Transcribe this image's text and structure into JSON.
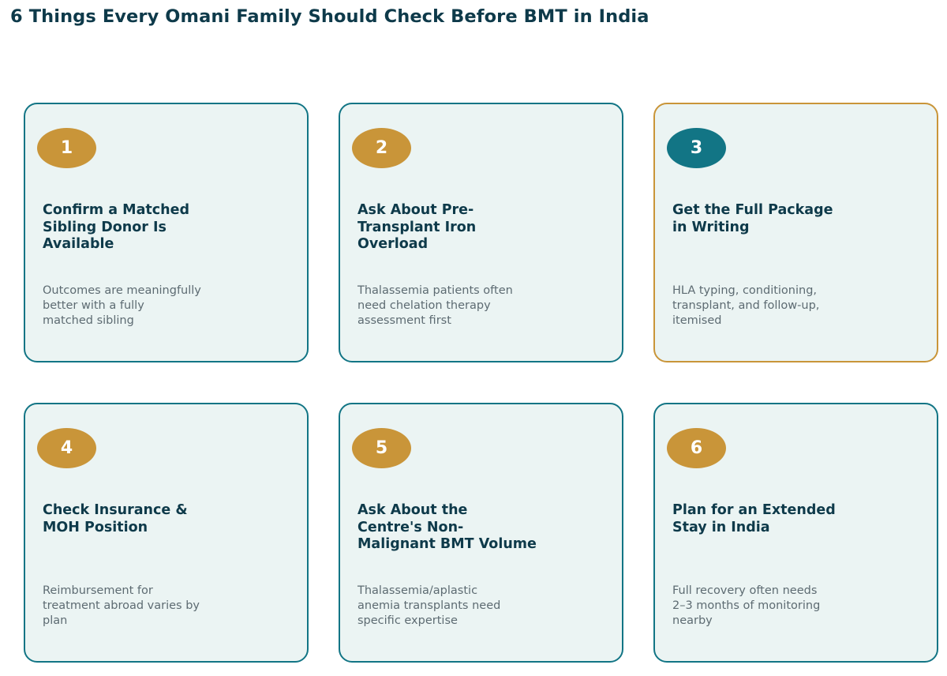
{
  "page": {
    "title": "6 Things Every Omani Family Should Check Before BMT in India"
  },
  "colors": {
    "text_dark": "#0e3a4a",
    "text_muted": "#5d6b72",
    "teal": "#127585",
    "gold": "#c99539",
    "card_background": "#ebf4f3"
  },
  "cards": [
    {
      "number": "1",
      "title_lines": [
        "Confirm a Matched",
        "Sibling Donor Is",
        "Available"
      ],
      "desc_lines": [
        "Outcomes are meaningfully",
        "better with a fully",
        "matched sibling"
      ]
    },
    {
      "number": "2",
      "title_lines": [
        "Ask About Pre-",
        "Transplant Iron",
        "Overload"
      ],
      "desc_lines": [
        "Thalassemia patients often",
        "need chelation therapy",
        "assessment first"
      ]
    },
    {
      "number": "3",
      "title_lines": [
        "Get the Full Package",
        "in Writing"
      ],
      "desc_lines": [
        "HLA typing, conditioning,",
        "transplant, and follow-up,",
        "itemised"
      ]
    },
    {
      "number": "4",
      "title_lines": [
        "Check Insurance &",
        "MOH Position"
      ],
      "desc_lines": [
        "Reimbursement for",
        "treatment abroad varies by",
        "plan"
      ]
    },
    {
      "number": "5",
      "title_lines": [
        "Ask About the",
        "Centre's Non-",
        "Malignant BMT Volume"
      ],
      "desc_lines": [
        "Thalassemia/aplastic",
        "anemia transplants need",
        "specific expertise"
      ]
    },
    {
      "number": "6",
      "title_lines": [
        "Plan for an Extended",
        "Stay in India"
      ],
      "desc_lines": [
        "Full recovery often needs",
        "2–3 months of monitoring",
        "nearby"
      ]
    }
  ]
}
